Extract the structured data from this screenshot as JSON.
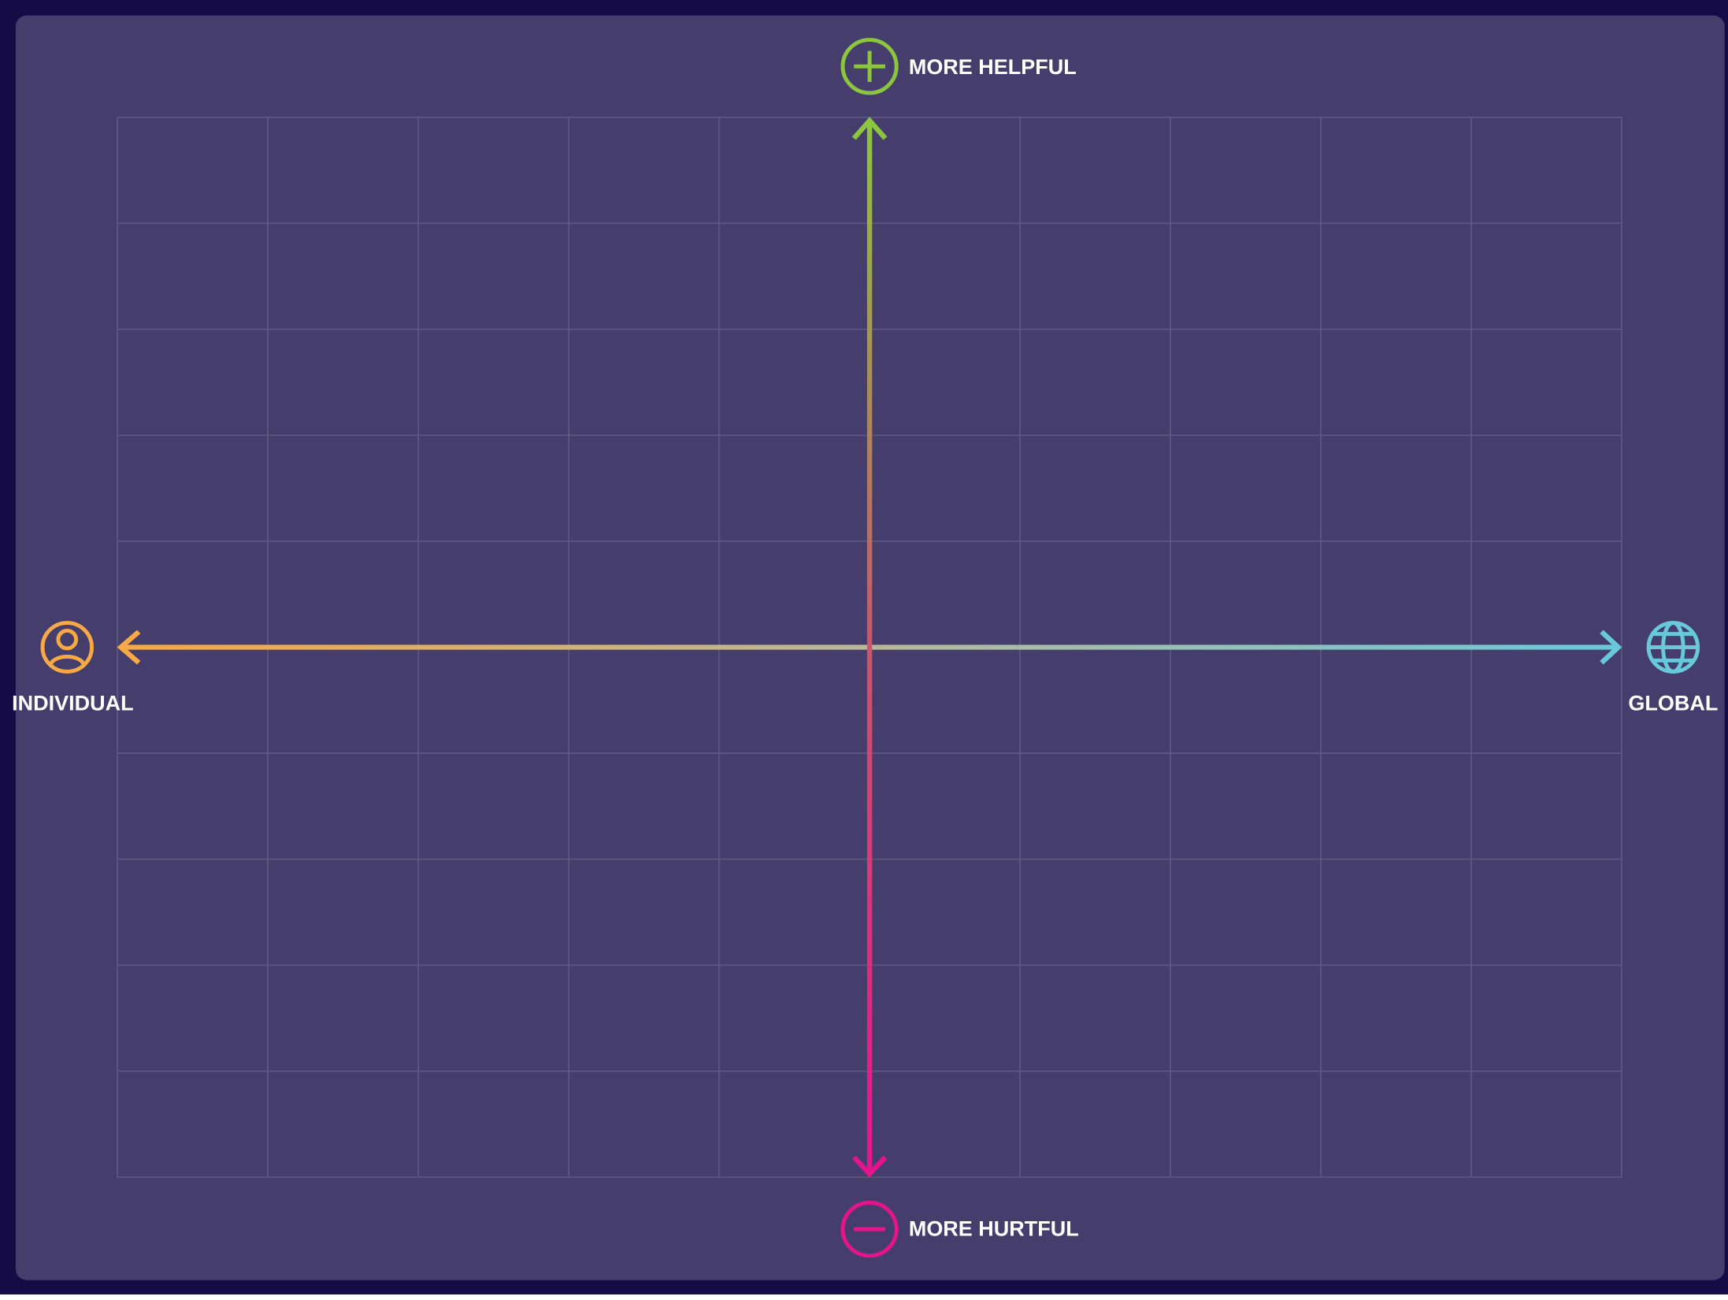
{
  "axes": {
    "top": {
      "label": "MORE HELPFUL"
    },
    "bottom": {
      "label": "MORE HURTFUL"
    },
    "left": {
      "label": "INDIVIDUAL"
    },
    "right": {
      "label": "GLOBAL"
    }
  }
}
